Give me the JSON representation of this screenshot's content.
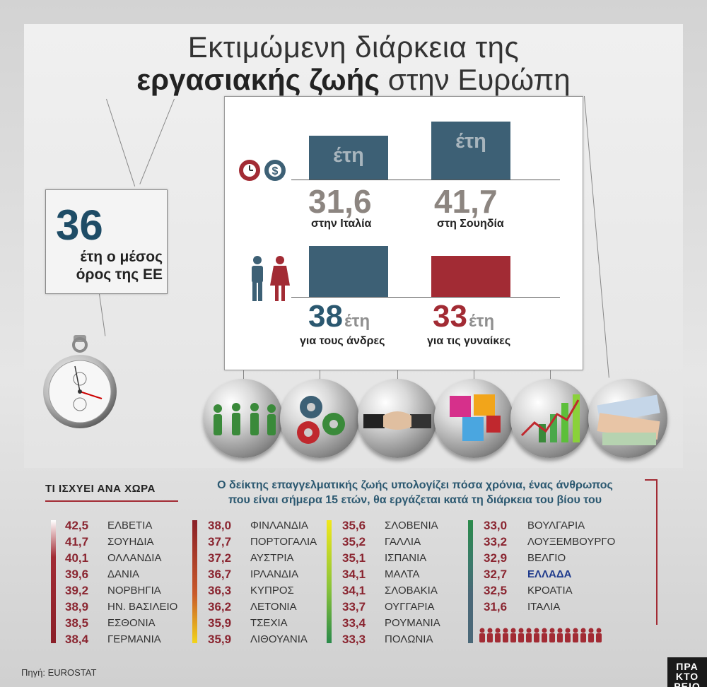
{
  "title": {
    "line1": "Εκτιμώμενη διάρκεια της",
    "line2_bold": "εργασιακής ζωής",
    "line2_rest": " στην Ευρώπη"
  },
  "eu_average": {
    "value": "36",
    "text_line1": "έτη ο μέσος",
    "text_line2": "όρος της ΕΕ"
  },
  "comparison": {
    "unit": "έτη",
    "italy": {
      "value": "31,6",
      "label": "στην Ιταλία"
    },
    "sweden": {
      "value": "41,7",
      "label": "στη Σουηδία"
    },
    "men": {
      "value": "38",
      "label": "για τους άνδρες"
    },
    "women": {
      "value": "33",
      "label": "για τις γυναίκες"
    }
  },
  "colors": {
    "blue": "#3d6075",
    "red": "#a22b34",
    "bullet_blue": "#4a6878"
  },
  "section_heading": "ΤΙ ΙΣΧΥΕΙ ΑΝΑ ΧΩΡΑ",
  "definition": {
    "line1": "Ο δείκτης επαγγελματικής ζωής υπολογίζει πόσα χρόνια, ένας άνθρωπος",
    "line2": "που είναι σήμερα 15 ετών, θα εργάζεται κατά τη διάρκεια του βίου του"
  },
  "countries": {
    "col1": [
      {
        "v": "42,5",
        "c": "ΕΛΒΕΤΙΑ"
      },
      {
        "v": "41,7",
        "c": "ΣΟΥΗΔΙΑ"
      },
      {
        "v": "40,1",
        "c": "ΟΛΛΑΝΔΙΑ"
      },
      {
        "v": "39,6",
        "c": "ΔΑΝΙΑ"
      },
      {
        "v": "39,2",
        "c": "ΝΟΡΒΗΓΙΑ"
      },
      {
        "v": "38,9",
        "c": "ΗΝ. ΒΑΣΙΛΕΙΟ"
      },
      {
        "v": "38,5",
        "c": "ΕΣΘΟΝΙΑ"
      },
      {
        "v": "38,4",
        "c": "ΓΕΡΜΑΝΙΑ"
      }
    ],
    "col2": [
      {
        "v": "38,0",
        "c": "ΦΙΝΛΑΝΔΙΑ"
      },
      {
        "v": "37,7",
        "c": "ΠΟΡΤΟΓΑΛΙΑ"
      },
      {
        "v": "37,2",
        "c": "ΑΥΣΤΡΙΑ"
      },
      {
        "v": "36,7",
        "c": "ΙΡΛΑΝΔΙΑ"
      },
      {
        "v": "36,3",
        "c": "ΚΥΠΡΟΣ"
      },
      {
        "v": "36,2",
        "c": "ΛΕΤΟΝΙΑ"
      },
      {
        "v": "35,9",
        "c": "ΤΣΕΧΙΑ"
      },
      {
        "v": "35,9",
        "c": "ΛΙΘΟΥΑΝΙΑ"
      }
    ],
    "col3": [
      {
        "v": "35,6",
        "c": "ΣΛΟΒΕΝΙΑ"
      },
      {
        "v": "35,2",
        "c": "ΓΑΛΛΙΑ"
      },
      {
        "v": "35,1",
        "c": "ΙΣΠΑΝΙΑ"
      },
      {
        "v": "34,1",
        "c": "ΜΑΛΤΑ"
      },
      {
        "v": "34,1",
        "c": "ΣΛΟΒΑΚΙΑ"
      },
      {
        "v": "33,7",
        "c": "ΟΥΓΓΑΡΙΑ"
      },
      {
        "v": "33,4",
        "c": "ΡΟΥΜΑΝΙΑ"
      },
      {
        "v": "33,3",
        "c": "ΠΟΛΩΝΙΑ"
      }
    ],
    "col4": [
      {
        "v": "33,0",
        "c": "ΒΟΥΛΓΑΡΙΑ"
      },
      {
        "v": "33,2",
        "c": "ΛΟΥΞΕΜΒΟΥΡΓΟ"
      },
      {
        "v": "32,9",
        "c": "ΒΕΛΓΙΟ"
      },
      {
        "v": "32,7",
        "c": "ΕΛΛΑΔΑ",
        "highlight": true
      },
      {
        "v": "32,5",
        "c": "ΚΡΟΑΤΙΑ"
      },
      {
        "v": "31,6",
        "c": "ΙΤΑΛΙΑ"
      }
    ]
  },
  "source": "Πηγή: EUROSTAT",
  "logo": {
    "line1": "ΠΡΑ",
    "line2": "ΚΤΟ",
    "line3": "ΡΕΙΟ"
  }
}
